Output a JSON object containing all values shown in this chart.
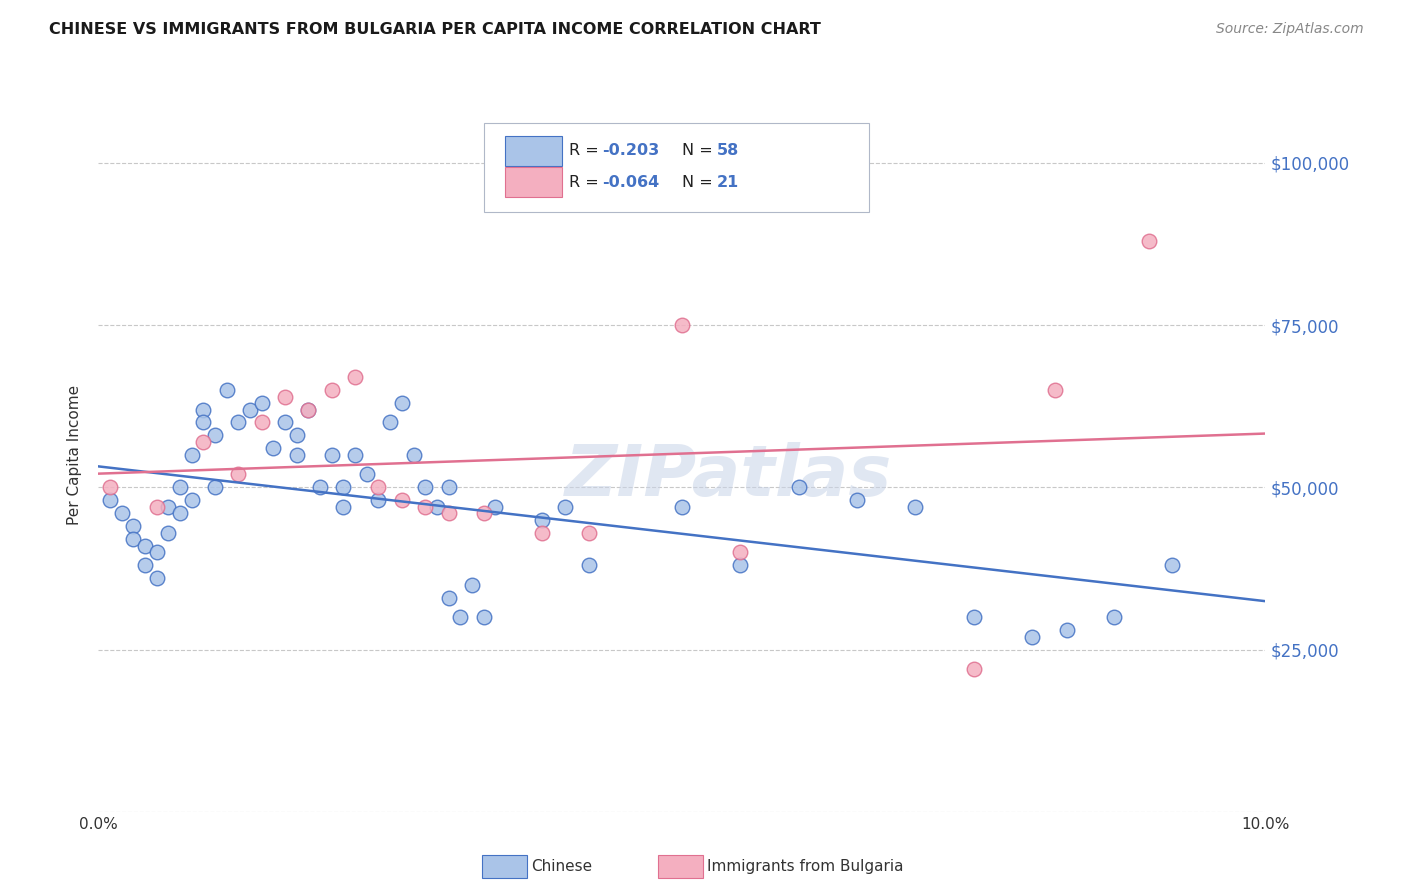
{
  "title": "CHINESE VS IMMIGRANTS FROM BULGARIA PER CAPITA INCOME CORRELATION CHART",
  "source": "Source: ZipAtlas.com",
  "ylabel": "Per Capita Income",
  "xlim": [
    0.0,
    0.1
  ],
  "ylim": [
    0,
    110000
  ],
  "yticks": [
    0,
    25000,
    50000,
    75000,
    100000
  ],
  "ytick_labels": [
    "",
    "$25,000",
    "$50,000",
    "$75,000",
    "$100,000"
  ],
  "chinese_color": "#aac4e8",
  "bulgaria_color": "#f4afc0",
  "line_chinese_color": "#4472c4",
  "line_bulgaria_color": "#e07090",
  "watermark": "ZIPatlas",
  "chinese_scatter_x": [
    0.001,
    0.002,
    0.003,
    0.003,
    0.004,
    0.004,
    0.005,
    0.005,
    0.006,
    0.006,
    0.007,
    0.007,
    0.008,
    0.008,
    0.009,
    0.009,
    0.01,
    0.01,
    0.011,
    0.012,
    0.013,
    0.014,
    0.015,
    0.016,
    0.017,
    0.017,
    0.018,
    0.019,
    0.02,
    0.021,
    0.021,
    0.022,
    0.023,
    0.024,
    0.025,
    0.026,
    0.027,
    0.028,
    0.029,
    0.03,
    0.03,
    0.031,
    0.032,
    0.033,
    0.034,
    0.038,
    0.04,
    0.042,
    0.05,
    0.055,
    0.06,
    0.065,
    0.07,
    0.075,
    0.08,
    0.083,
    0.087,
    0.092
  ],
  "chinese_scatter_y": [
    48000,
    46000,
    44000,
    42000,
    41000,
    38000,
    40000,
    36000,
    47000,
    43000,
    50000,
    46000,
    55000,
    48000,
    62000,
    60000,
    58000,
    50000,
    65000,
    60000,
    62000,
    63000,
    56000,
    60000,
    58000,
    55000,
    62000,
    50000,
    55000,
    50000,
    47000,
    55000,
    52000,
    48000,
    60000,
    63000,
    55000,
    50000,
    47000,
    50000,
    33000,
    30000,
    35000,
    30000,
    47000,
    45000,
    47000,
    38000,
    47000,
    38000,
    50000,
    48000,
    47000,
    30000,
    27000,
    28000,
    30000,
    38000
  ],
  "bulgaria_scatter_x": [
    0.001,
    0.005,
    0.009,
    0.012,
    0.014,
    0.016,
    0.018,
    0.02,
    0.022,
    0.024,
    0.026,
    0.028,
    0.03,
    0.033,
    0.038,
    0.042,
    0.05,
    0.055,
    0.075,
    0.082,
    0.09
  ],
  "bulgaria_scatter_y": [
    50000,
    47000,
    57000,
    52000,
    60000,
    64000,
    62000,
    65000,
    67000,
    50000,
    48000,
    47000,
    46000,
    46000,
    43000,
    43000,
    75000,
    40000,
    22000,
    65000,
    88000
  ]
}
